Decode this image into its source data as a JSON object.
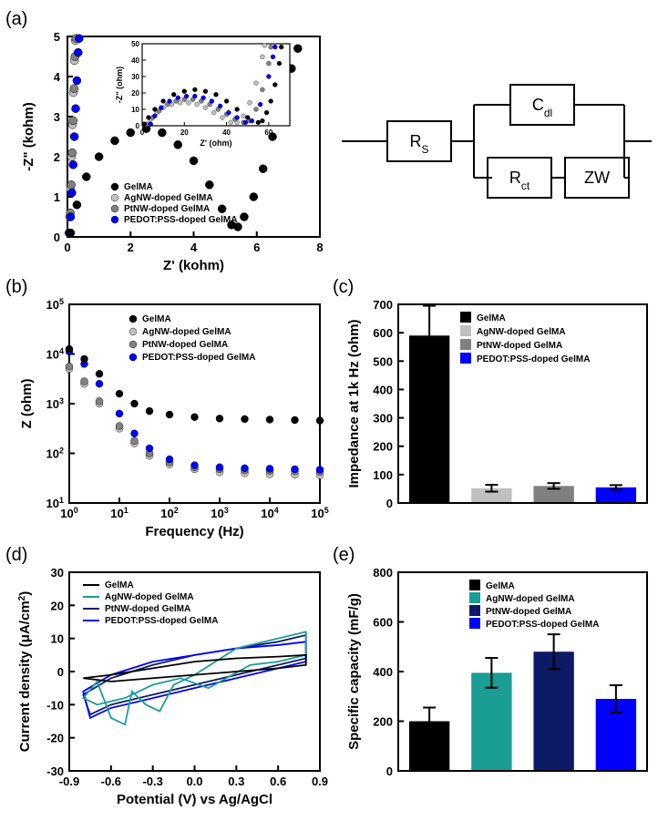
{
  "labels": {
    "a": "(a)",
    "b": "(b)",
    "c": "(c)",
    "d": "(d)",
    "e": "(e)"
  },
  "series": {
    "gelma": {
      "name": "GelMA",
      "color": "#000000"
    },
    "agnw": {
      "name": "AgNW-doped GelMA",
      "color": "#c0c0c0"
    },
    "ptnw": {
      "name": "PtNW-doped GelMA",
      "color": "#808080"
    },
    "pedot": {
      "name": "PEDOT:PSS-doped GelMA",
      "color": "#0000ff"
    }
  },
  "panel_a": {
    "type": "scatter",
    "xlabel": "Z' (kohm)",
    "ylabel": "-Z\" (kohm)",
    "xlim": [
      0,
      8
    ],
    "xtick_step": 2,
    "ylim": [
      0,
      5
    ],
    "ytick_step": 1,
    "inset": {
      "xlabel": "Z' (ohm)",
      "ylabel": "-Z\" (ohm)",
      "xlim": [
        0,
        70
      ],
      "xtick_step": 20,
      "ylim": [
        0,
        50
      ],
      "ytick_step": 10
    },
    "gelma_pts": [
      [
        0.1,
        0.1
      ],
      [
        0.3,
        0.8
      ],
      [
        0.6,
        1.5
      ],
      [
        1.0,
        2.0
      ],
      [
        1.5,
        2.4
      ],
      [
        2.0,
        2.6
      ],
      [
        2.5,
        2.7
      ],
      [
        3.0,
        2.6
      ],
      [
        3.5,
        2.3
      ],
      [
        4.0,
        1.9
      ],
      [
        4.5,
        1.3
      ],
      [
        4.9,
        0.7
      ],
      [
        5.2,
        0.3
      ],
      [
        5.4,
        0.25
      ],
      [
        5.6,
        0.5
      ],
      [
        5.9,
        1.0
      ],
      [
        6.2,
        1.7
      ],
      [
        6.5,
        2.5
      ],
      [
        6.8,
        3.4
      ],
      [
        7.1,
        4.2
      ],
      [
        7.3,
        4.7
      ]
    ],
    "agnw_pts": [
      [
        0.05,
        0.1
      ],
      [
        0.07,
        0.5
      ],
      [
        0.1,
        1.2
      ],
      [
        0.13,
        2.0
      ],
      [
        0.16,
        2.8
      ],
      [
        0.19,
        3.6
      ],
      [
        0.22,
        4.4
      ],
      [
        0.25,
        4.9
      ]
    ],
    "ptnw_pts": [
      [
        0.06,
        0.1
      ],
      [
        0.09,
        0.6
      ],
      [
        0.12,
        1.3
      ],
      [
        0.15,
        2.1
      ],
      [
        0.18,
        2.9
      ],
      [
        0.21,
        3.7
      ],
      [
        0.24,
        4.5
      ],
      [
        0.27,
        4.95
      ]
    ],
    "pedot_pts": [
      [
        0.07,
        0.1
      ],
      [
        0.1,
        0.5
      ],
      [
        0.14,
        1.1
      ],
      [
        0.18,
        1.8
      ],
      [
        0.22,
        2.5
      ],
      [
        0.26,
        3.2
      ],
      [
        0.3,
        3.9
      ],
      [
        0.34,
        4.6
      ],
      [
        0.37,
        4.95
      ]
    ],
    "inset_gelma": [
      [
        1,
        1
      ],
      [
        3,
        5
      ],
      [
        6,
        10
      ],
      [
        10,
        15
      ],
      [
        15,
        19
      ],
      [
        20,
        21
      ],
      [
        25,
        22
      ],
      [
        30,
        21
      ],
      [
        35,
        19
      ],
      [
        40,
        15
      ],
      [
        45,
        10
      ],
      [
        50,
        5
      ],
      [
        55,
        2
      ],
      [
        57,
        3
      ],
      [
        59,
        8
      ],
      [
        61,
        15
      ],
      [
        63,
        25
      ],
      [
        65,
        38
      ],
      [
        66,
        48
      ]
    ],
    "inset_agnw": [
      [
        2,
        1
      ],
      [
        4,
        4
      ],
      [
        7,
        8
      ],
      [
        10,
        11
      ],
      [
        14,
        13
      ],
      [
        18,
        14
      ],
      [
        22,
        14
      ],
      [
        26,
        13
      ],
      [
        30,
        11
      ],
      [
        34,
        8
      ],
      [
        38,
        5
      ],
      [
        42,
        2
      ],
      [
        45,
        2
      ],
      [
        48,
        6
      ],
      [
        51,
        14
      ],
      [
        54,
        26
      ],
      [
        57,
        42
      ],
      [
        58,
        49
      ]
    ],
    "inset_ptnw": [
      [
        3,
        1
      ],
      [
        5,
        5
      ],
      [
        8,
        9
      ],
      [
        12,
        13
      ],
      [
        16,
        15
      ],
      [
        20,
        16
      ],
      [
        24,
        16
      ],
      [
        28,
        15
      ],
      [
        32,
        13
      ],
      [
        36,
        10
      ],
      [
        40,
        7
      ],
      [
        44,
        4
      ],
      [
        48,
        2
      ],
      [
        51,
        3
      ],
      [
        54,
        10
      ],
      [
        57,
        22
      ],
      [
        60,
        38
      ],
      [
        61,
        48
      ]
    ],
    "inset_pedot": [
      [
        4,
        1
      ],
      [
        6,
        6
      ],
      [
        9,
        11
      ],
      [
        13,
        15
      ],
      [
        17,
        17
      ],
      [
        21,
        18
      ],
      [
        25,
        18
      ],
      [
        29,
        17
      ],
      [
        33,
        15
      ],
      [
        37,
        12
      ],
      [
        41,
        8
      ],
      [
        45,
        5
      ],
      [
        49,
        2
      ],
      [
        52,
        3
      ],
      [
        56,
        13
      ],
      [
        60,
        30
      ],
      [
        62,
        42
      ],
      [
        63,
        48
      ]
    ]
  },
  "circuit": {
    "rs": "R",
    "rs_sub": "S",
    "cdl": "C",
    "cdl_sub": "dl",
    "rct": "R",
    "rct_sub": "ct",
    "zw": "ZW"
  },
  "panel_b": {
    "type": "line-loglog",
    "xlabel": "Frequency (Hz)",
    "ylabel": "Z (ohm)",
    "xlim_exp": [
      0,
      5
    ],
    "ylim_exp": [
      1,
      5
    ],
    "gelma": [
      [
        0,
        4.1
      ],
      [
        0.3,
        3.9
      ],
      [
        0.6,
        3.6
      ],
      [
        1.0,
        3.2
      ],
      [
        1.3,
        3.0
      ],
      [
        1.6,
        2.85
      ],
      [
        2.0,
        2.78
      ],
      [
        2.5,
        2.73
      ],
      [
        3.0,
        2.7
      ],
      [
        3.5,
        2.69
      ],
      [
        4.0,
        2.68
      ],
      [
        4.5,
        2.67
      ],
      [
        5.0,
        2.66
      ]
    ],
    "agnw": [
      [
        0,
        3.7
      ],
      [
        0.3,
        3.4
      ],
      [
        0.6,
        3.0
      ],
      [
        1.0,
        2.5
      ],
      [
        1.3,
        2.2
      ],
      [
        1.6,
        1.95
      ],
      [
        2.0,
        1.78
      ],
      [
        2.5,
        1.68
      ],
      [
        3.0,
        1.62
      ],
      [
        3.5,
        1.6
      ],
      [
        4.0,
        1.58
      ],
      [
        4.5,
        1.57
      ],
      [
        5.0,
        1.56
      ]
    ],
    "ptnw": [
      [
        0,
        3.75
      ],
      [
        0.3,
        3.45
      ],
      [
        0.6,
        3.05
      ],
      [
        1.0,
        2.55
      ],
      [
        1.3,
        2.25
      ],
      [
        1.6,
        2.0
      ],
      [
        2.0,
        1.82
      ],
      [
        2.5,
        1.72
      ],
      [
        3.0,
        1.68
      ],
      [
        3.5,
        1.66
      ],
      [
        4.0,
        1.65
      ],
      [
        4.5,
        1.64
      ],
      [
        5.0,
        1.63
      ]
    ],
    "pedot": [
      [
        0,
        4.05
      ],
      [
        0.3,
        3.8
      ],
      [
        0.6,
        3.4
      ],
      [
        1.0,
        2.8
      ],
      [
        1.3,
        2.4
      ],
      [
        1.6,
        2.1
      ],
      [
        2.0,
        1.88
      ],
      [
        2.5,
        1.76
      ],
      [
        3.0,
        1.72
      ],
      [
        3.5,
        1.7
      ],
      [
        4.0,
        1.69
      ],
      [
        4.5,
        1.68
      ],
      [
        5.0,
        1.67
      ]
    ]
  },
  "panel_c": {
    "type": "bar",
    "ylabel": "Impedance at 1k Hz (ohm)",
    "ylim": [
      0,
      700
    ],
    "ytick_step": 100,
    "bars": [
      {
        "series": "gelma",
        "value": 590,
        "err": 105
      },
      {
        "series": "agnw",
        "value": 52,
        "err": 12
      },
      {
        "series": "ptnw",
        "value": 60,
        "err": 10
      },
      {
        "series": "pedot",
        "value": 55,
        "err": 8
      }
    ]
  },
  "panel_d": {
    "type": "line",
    "xlabel": "Potential (V) vs Ag/AgCl",
    "ylabel": "Current density (μA/cm²)",
    "xlim": [
      -0.9,
      0.9
    ],
    "xtick_step": 0.3,
    "ylim": [
      -30,
      30
    ],
    "ytick_step": 10,
    "series_colors": {
      "gelma": "#000000",
      "agnw": "#1a9e94",
      "ptnw": "#0d1a66",
      "pedot": "#0000ff"
    },
    "gelma": [
      [
        -0.8,
        -2
      ],
      [
        -0.6,
        -1
      ],
      [
        -0.3,
        1
      ],
      [
        0,
        3
      ],
      [
        0.3,
        4
      ],
      [
        0.6,
        4.5
      ],
      [
        0.8,
        5
      ],
      [
        0.8,
        2
      ],
      [
        0.6,
        1
      ],
      [
        0.3,
        0
      ],
      [
        0,
        -1
      ],
      [
        -0.3,
        -2
      ],
      [
        -0.6,
        -3
      ],
      [
        -0.8,
        -2
      ]
    ],
    "agnw": [
      [
        -0.8,
        -8
      ],
      [
        -0.7,
        -3
      ],
      [
        -0.6,
        -14
      ],
      [
        -0.5,
        -16
      ],
      [
        -0.45,
        -6
      ],
      [
        -0.35,
        -10
      ],
      [
        -0.25,
        -12
      ],
      [
        -0.15,
        -4
      ],
      [
        0,
        -1
      ],
      [
        0.3,
        7
      ],
      [
        0.6,
        10
      ],
      [
        0.8,
        12
      ],
      [
        0.8,
        5
      ],
      [
        0.6,
        3
      ],
      [
        0.4,
        2
      ],
      [
        0.1,
        -5
      ],
      [
        -0.1,
        -2
      ],
      [
        -0.3,
        -4
      ],
      [
        -0.5,
        -8
      ],
      [
        -0.7,
        -10
      ],
      [
        -0.8,
        -8
      ]
    ],
    "ptnw": [
      [
        -0.8,
        -7
      ],
      [
        -0.6,
        -2
      ],
      [
        -0.3,
        2
      ],
      [
        0,
        5
      ],
      [
        0.3,
        7
      ],
      [
        0.6,
        9
      ],
      [
        0.8,
        11
      ],
      [
        0.8,
        4
      ],
      [
        0.6,
        2
      ],
      [
        0.3,
        -1
      ],
      [
        0,
        -4
      ],
      [
        -0.3,
        -7
      ],
      [
        -0.6,
        -10
      ],
      [
        -0.75,
        -13
      ],
      [
        -0.8,
        -7
      ]
    ],
    "pedot": [
      [
        -0.8,
        -6
      ],
      [
        -0.6,
        -1
      ],
      [
        -0.3,
        3
      ],
      [
        0,
        5
      ],
      [
        0.3,
        7
      ],
      [
        0.6,
        8
      ],
      [
        0.8,
        9
      ],
      [
        0.8,
        3
      ],
      [
        0.6,
        1
      ],
      [
        0.3,
        -2
      ],
      [
        0,
        -5
      ],
      [
        -0.3,
        -8
      ],
      [
        -0.6,
        -11
      ],
      [
        -0.75,
        -14
      ],
      [
        -0.8,
        -6
      ]
    ]
  },
  "panel_e": {
    "type": "bar",
    "ylabel": "Specific capacity (mF/g)",
    "ylim": [
      0,
      800
    ],
    "ytick_step": 200,
    "series_colors": {
      "gelma": "#000000",
      "agnw": "#1a9e94",
      "ptnw": "#0d1a66",
      "pedot": "#0000ff"
    },
    "bars": [
      {
        "series": "gelma",
        "value": 200,
        "err": 55
      },
      {
        "series": "agnw",
        "value": 395,
        "err": 60
      },
      {
        "series": "ptnw",
        "value": 480,
        "err": 70
      },
      {
        "series": "pedot",
        "value": 290,
        "err": 55
      }
    ]
  }
}
